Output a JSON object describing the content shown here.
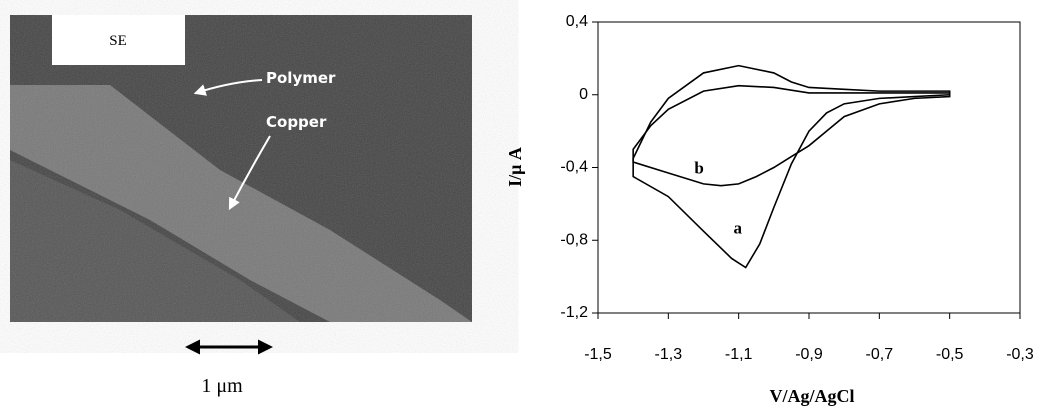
{
  "image": {
    "labels": [
      "SE",
      "Polymer",
      "Copper",
      "1 μm"
    ]
  },
  "chart_data": {
    "type": "line",
    "x_label": "V/Ag/AgCl",
    "y_label": "I/μ A",
    "xlim": [
      -1.5,
      -0.3
    ],
    "ylim": [
      -1.2,
      0.4
    ],
    "xticks": [
      {
        "value": -1.5,
        "label": "-1,5"
      },
      {
        "value": -1.3,
        "label": "-1,3"
      },
      {
        "value": -1.1,
        "label": "-1,1"
      },
      {
        "value": -0.9,
        "label": "-0,9"
      },
      {
        "value": -0.7,
        "label": "-0,7"
      },
      {
        "value": -0.5,
        "label": "-0,5"
      },
      {
        "value": -0.3,
        "label": "-0,3"
      }
    ],
    "yticks": [
      {
        "value": -1.2,
        "label": "-1,2"
      },
      {
        "value": -0.8,
        "label": "-0,8"
      },
      {
        "value": -0.4,
        "label": "-0,4"
      },
      0,
      {
        "value": 0.4,
        "label": "0,4"
      }
    ],
    "grid": false,
    "series": [
      {
        "name": "a",
        "color": "#000000",
        "x": [
          -0.5,
          -0.6,
          -0.7,
          -0.8,
          -0.85,
          -0.9,
          -0.95,
          -1.0,
          -1.04,
          -1.08,
          -1.12,
          -1.2,
          -1.3,
          -1.4,
          -1.4,
          -1.35,
          -1.3,
          -1.2,
          -1.1,
          -1.0,
          -0.95,
          -0.9,
          -0.8,
          -0.7,
          -0.5
        ],
        "values": [
          0.0,
          -0.01,
          -0.02,
          -0.05,
          -0.1,
          -0.2,
          -0.38,
          -0.62,
          -0.82,
          -0.95,
          -0.9,
          -0.75,
          -0.56,
          -0.45,
          -0.35,
          -0.15,
          -0.02,
          0.12,
          0.16,
          0.12,
          0.07,
          0.04,
          0.03,
          0.02,
          0.02
        ]
      },
      {
        "name": "b",
        "color": "#000000",
        "x": [
          -0.5,
          -0.6,
          -0.7,
          -0.8,
          -0.85,
          -0.9,
          -0.95,
          -1.0,
          -1.05,
          -1.1,
          -1.15,
          -1.2,
          -1.3,
          -1.4,
          -1.4,
          -1.35,
          -1.3,
          -1.2,
          -1.1,
          -1.0,
          -0.9,
          -0.8,
          -0.7,
          -0.5
        ],
        "values": [
          -0.01,
          -0.02,
          -0.05,
          -0.12,
          -0.2,
          -0.28,
          -0.34,
          -0.4,
          -0.45,
          -0.49,
          -0.5,
          -0.49,
          -0.43,
          -0.37,
          -0.3,
          -0.17,
          -0.08,
          0.02,
          0.05,
          0.04,
          0.01,
          0.01,
          0.01,
          0.01
        ]
      }
    ]
  }
}
